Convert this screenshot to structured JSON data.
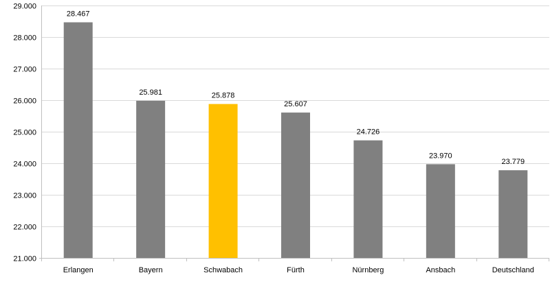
{
  "chart_data": {
    "type": "bar",
    "title": "",
    "xlabel": "",
    "ylabel": "",
    "categories": [
      "Erlangen",
      "Bayern",
      "Schwabach",
      "Fürth",
      "Nürnberg",
      "Ansbach",
      "Deutschland"
    ],
    "values": [
      28467,
      25981,
      25878,
      25607,
      24726,
      23970,
      23779
    ],
    "value_labels": [
      "28.467",
      "25.981",
      "25.878",
      "25.607",
      "24.726",
      "23.970",
      "23.779"
    ],
    "ylim": [
      21000,
      29000
    ],
    "yticks": [
      21000,
      22000,
      23000,
      24000,
      25000,
      26000,
      27000,
      28000,
      29000
    ],
    "ytick_labels": [
      "21.000",
      "22.000",
      "23.000",
      "24.000",
      "25.000",
      "26.000",
      "27.000",
      "28.000",
      "29.000"
    ],
    "grid": true,
    "legend": "none",
    "colors": {
      "default_bar": "#808080",
      "highlight_bar": "#ffc000",
      "highlight_category": "Schwabach"
    }
  }
}
